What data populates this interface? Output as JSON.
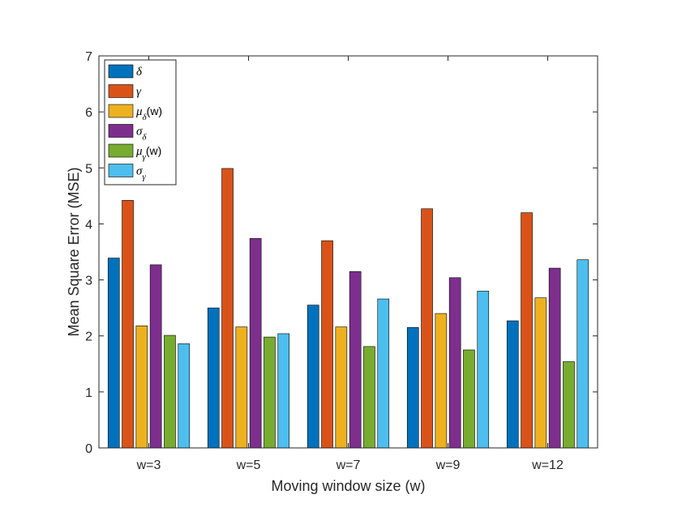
{
  "chart_data": {
    "type": "bar",
    "title": "",
    "xlabel": "Moving window size (w)",
    "ylabel": "Mean Square Error (MSE)",
    "ylim": [
      0,
      7
    ],
    "yticks": [
      "0",
      "1",
      "2",
      "3",
      "4",
      "5",
      "6",
      "7"
    ],
    "categories": [
      "w=3",
      "w=5",
      "w=7",
      "w=9",
      "w=12"
    ],
    "legend_position": "top-left",
    "series": [
      {
        "name": "δ",
        "base": "δ",
        "sub": "",
        "suffix": "",
        "color": "#0072BD",
        "values": [
          3.39,
          2.5,
          2.55,
          2.15,
          2.27
        ]
      },
      {
        "name": "γ",
        "base": "γ",
        "sub": "",
        "suffix": "",
        "color": "#D95319",
        "values": [
          4.42,
          4.99,
          3.7,
          4.27,
          4.2
        ]
      },
      {
        "name": "μδ(w)",
        "base": "μ",
        "sub": "δ",
        "suffix": "(w)",
        "color": "#EDB120",
        "values": [
          2.18,
          2.16,
          2.16,
          2.4,
          2.68
        ]
      },
      {
        "name": "σδ",
        "base": "σ",
        "sub": "δ",
        "suffix": "",
        "color": "#7E2F8E",
        "values": [
          3.27,
          3.74,
          3.15,
          3.04,
          3.21
        ]
      },
      {
        "name": "μγ(w)",
        "base": "μ",
        "sub": "γ",
        "suffix": "(w)",
        "color": "#77AC30",
        "values": [
          2.01,
          1.98,
          1.81,
          1.75,
          1.54
        ]
      },
      {
        "name": "σγ",
        "base": "σ",
        "sub": "γ",
        "suffix": "",
        "color": "#4DBEEE",
        "values": [
          1.86,
          2.04,
          2.66,
          2.8,
          3.36
        ]
      }
    ]
  }
}
